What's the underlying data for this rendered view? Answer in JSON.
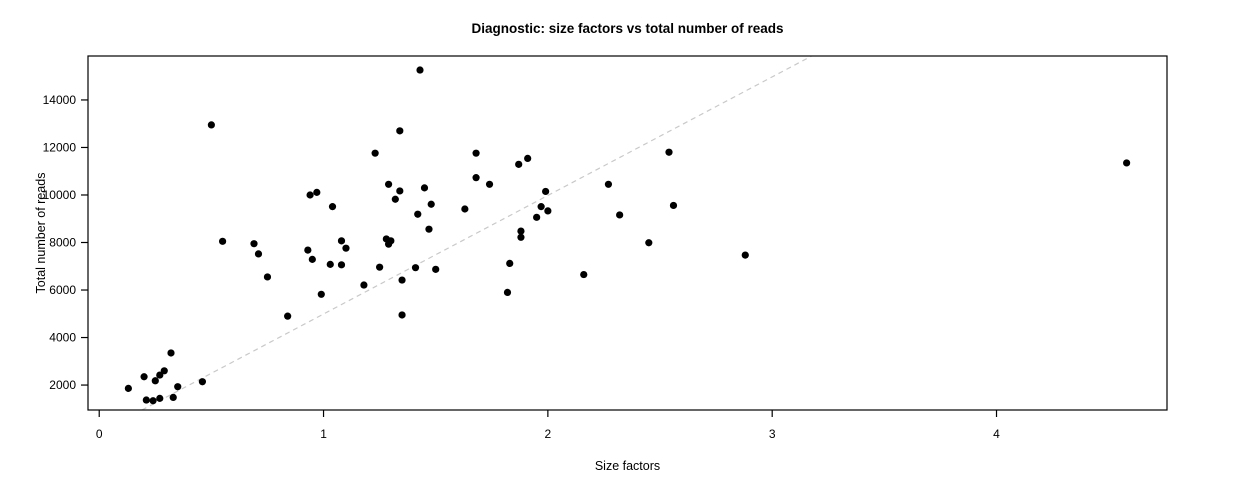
{
  "figure": {
    "title": "Diagnostic: size factors vs total number of reads",
    "xlabel": "Size factors",
    "ylabel": "Total number of reads"
  },
  "chart_data": {
    "type": "scatter",
    "title": "Diagnostic: size factors vs total number of reads",
    "xlabel": "Size factors",
    "ylabel": "Total number of reads",
    "xlim": [
      -0.05,
      4.76
    ],
    "ylim": [
      950,
      15850
    ],
    "x_ticks": [
      0,
      1,
      2,
      3,
      4
    ],
    "y_ticks": [
      2000,
      4000,
      6000,
      8000,
      10000,
      12000,
      14000
    ],
    "grid": false,
    "legend": "none",
    "point_color": "#000000",
    "point_radius": 3.6,
    "box_color": "#000000",
    "reference_line": {
      "style": "dashed",
      "color": "#c9c9c9",
      "intercept": 0,
      "slope": 4990
    },
    "points": [
      [
        0.13,
        1860
      ],
      [
        0.2,
        2350
      ],
      [
        0.21,
        1370
      ],
      [
        0.24,
        1340
      ],
      [
        0.25,
        2180
      ],
      [
        0.27,
        1440
      ],
      [
        0.27,
        2420
      ],
      [
        0.29,
        2600
      ],
      [
        0.32,
        3350
      ],
      [
        0.33,
        1480
      ],
      [
        0.35,
        1930
      ],
      [
        0.46,
        2140
      ],
      [
        0.5,
        12950
      ],
      [
        0.55,
        8050
      ],
      [
        0.69,
        7950
      ],
      [
        0.71,
        7520
      ],
      [
        0.75,
        6550
      ],
      [
        0.84,
        4900
      ],
      [
        0.93,
        7680
      ],
      [
        0.94,
        10000
      ],
      [
        0.95,
        7290
      ],
      [
        0.97,
        10110
      ],
      [
        0.99,
        5820
      ],
      [
        1.03,
        7080
      ],
      [
        1.04,
        9510
      ],
      [
        1.08,
        8070
      ],
      [
        1.08,
        7060
      ],
      [
        1.1,
        7760
      ],
      [
        1.18,
        6210
      ],
      [
        1.23,
        11760
      ],
      [
        1.25,
        6960
      ],
      [
        1.28,
        8150
      ],
      [
        1.29,
        7930
      ],
      [
        1.29,
        10450
      ],
      [
        1.3,
        8070
      ],
      [
        1.32,
        9820
      ],
      [
        1.34,
        12700
      ],
      [
        1.34,
        10170
      ],
      [
        1.35,
        6420
      ],
      [
        1.35,
        4950
      ],
      [
        1.41,
        6940
      ],
      [
        1.42,
        9190
      ],
      [
        1.43,
        15260
      ],
      [
        1.45,
        10300
      ],
      [
        1.47,
        8560
      ],
      [
        1.48,
        9610
      ],
      [
        1.5,
        6870
      ],
      [
        1.63,
        9410
      ],
      [
        1.68,
        11760
      ],
      [
        1.68,
        10730
      ],
      [
        1.74,
        10450
      ],
      [
        1.82,
        5900
      ],
      [
        1.83,
        7120
      ],
      [
        1.87,
        11290
      ],
      [
        1.88,
        8480
      ],
      [
        1.88,
        8220
      ],
      [
        1.91,
        11540
      ],
      [
        1.95,
        9060
      ],
      [
        1.97,
        9510
      ],
      [
        1.99,
        10150
      ],
      [
        2.0,
        9330
      ],
      [
        2.16,
        6650
      ],
      [
        2.27,
        10450
      ],
      [
        2.32,
        9160
      ],
      [
        2.45,
        7990
      ],
      [
        2.54,
        11800
      ],
      [
        2.56,
        9560
      ],
      [
        2.88,
        7470
      ],
      [
        4.58,
        11350
      ]
    ]
  }
}
